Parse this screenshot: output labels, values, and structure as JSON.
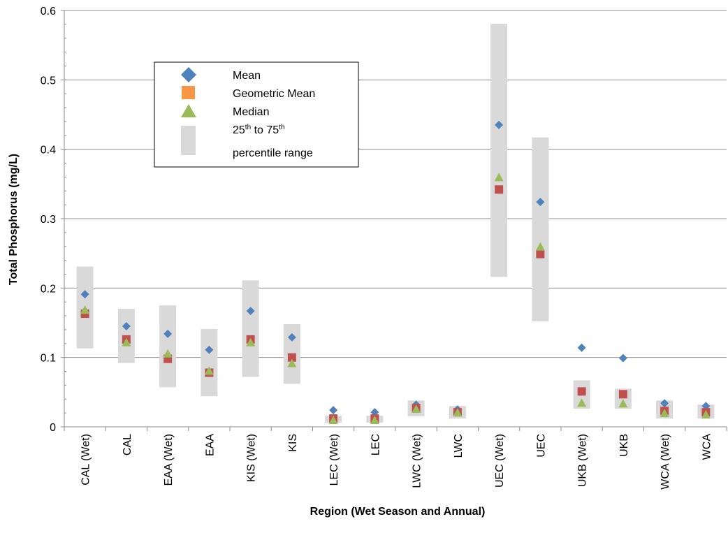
{
  "chart_data": {
    "type": "scatter",
    "xlabel": "Region (Wet Season and Annual)",
    "ylabel": "Total Phosphorus  (mg/L)",
    "ylim": [
      0,
      0.6
    ],
    "yticks": [
      "0",
      "0.1",
      "0.2",
      "0.3",
      "0.4",
      "0.5",
      "0.6"
    ],
    "grid": true,
    "legend_position": "upper-left",
    "categories": [
      "CAL (Wet)",
      "CAL",
      "EAA (Wet)",
      "EAA",
      "KIS  (Wet)",
      "KIS",
      "LEC (Wet)",
      "LEC",
      "LWC (Wet)",
      "LWC",
      "UEC (Wet)",
      "UEC",
      "UKB (Wet)",
      "UKB",
      "WCA (Wet)",
      "WCA"
    ],
    "series": [
      {
        "name": "Mean",
        "marker": "diamond",
        "color": "#4F81BD",
        "values": [
          0.191,
          0.145,
          0.134,
          0.111,
          0.167,
          0.129,
          0.024,
          0.021,
          0.032,
          0.025,
          0.435,
          0.324,
          0.114,
          0.099,
          0.034,
          0.03
        ]
      },
      {
        "name": "Geometric Mean",
        "marker": "square",
        "color": "#C0504D",
        "legend_color": "#F79646",
        "values": [
          0.163,
          0.126,
          0.098,
          0.078,
          0.126,
          0.1,
          0.012,
          0.012,
          0.027,
          0.021,
          0.342,
          0.249,
          0.051,
          0.047,
          0.023,
          0.021
        ]
      },
      {
        "name": "Median",
        "marker": "triangle",
        "color": "#9BBB59",
        "values": [
          0.168,
          0.121,
          0.105,
          0.08,
          0.121,
          0.091,
          0.009,
          0.009,
          0.025,
          0.02,
          0.359,
          0.259,
          0.034,
          0.033,
          0.019,
          0.017
        ]
      }
    ],
    "range": {
      "name": "25th to 75th percentile range",
      "legend_lines": [
        "25",
        "th",
        " to 75",
        "th",
        "percentile range"
      ],
      "color": "#D9D9D9",
      "low": [
        0.113,
        0.092,
        0.057,
        0.044,
        0.072,
        0.062,
        0.006,
        0.006,
        0.015,
        0.012,
        0.216,
        0.152,
        0.026,
        0.026,
        0.012,
        0.012
      ],
      "high": [
        0.231,
        0.17,
        0.175,
        0.141,
        0.211,
        0.148,
        0.016,
        0.016,
        0.038,
        0.03,
        0.581,
        0.417,
        0.067,
        0.055,
        0.038,
        0.032
      ]
    }
  }
}
